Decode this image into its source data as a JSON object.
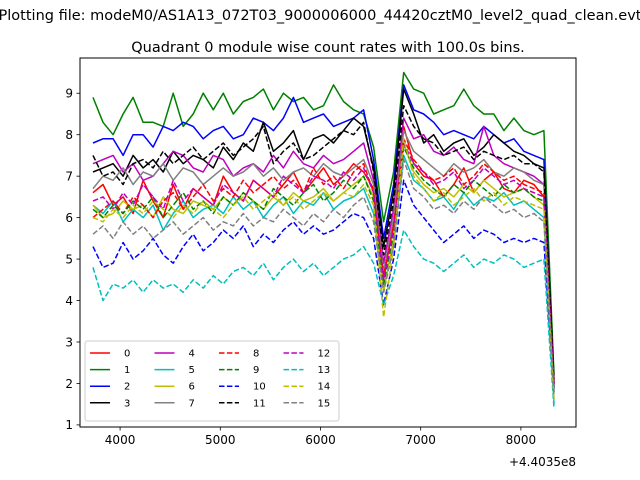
{
  "chart_data": {
    "type": "line",
    "suptitle": "Plotting file: modeM0/AS1A13_072T03_9000006000_44420cztM0_level2_quad_clean.evt",
    "title": "Quadrant 0 module wise count rates with 100.0s bins.",
    "xlabel": "",
    "ylabel": "",
    "offset_label": "+4.4035e8",
    "xlim": [
      3600,
      8550
    ],
    "ylim": [
      0.95,
      9.85
    ],
    "xticks": [
      4000,
      5000,
      6000,
      7000,
      8000
    ],
    "yticks": [
      1,
      2,
      3,
      4,
      5,
      6,
      7,
      8,
      9
    ],
    "grid": false,
    "legend_position": "lower left",
    "legend_columns": 4,
    "x": [
      3730,
      3830,
      3930,
      4030,
      4130,
      4230,
      4330,
      4430,
      4530,
      4630,
      4730,
      4830,
      4930,
      5030,
      5130,
      5230,
      5330,
      5430,
      5530,
      5630,
      5730,
      5830,
      5930,
      6030,
      6130,
      6230,
      6330,
      6430,
      6530,
      6630,
      6730,
      6830,
      6930,
      7030,
      7130,
      7230,
      7330,
      7430,
      7530,
      7630,
      7730,
      7830,
      7930,
      8030,
      8130,
      8230,
      8330
    ],
    "series": [
      {
        "name": "0",
        "color": "#ff0000",
        "dash": "solid",
        "values": [
          6.6,
          6.8,
          6.3,
          6.5,
          6.1,
          6.9,
          6.4,
          6.0,
          6.8,
          6.2,
          6.7,
          6.5,
          6.3,
          7.0,
          6.6,
          6.4,
          6.9,
          6.7,
          6.5,
          6.8,
          7.1,
          6.6,
          6.9,
          7.2,
          6.8,
          7.0,
          7.3,
          7.1,
          6.7,
          4.5,
          5.9,
          8.2,
          7.3,
          7.0,
          6.9,
          6.5,
          6.8,
          7.2,
          6.6,
          6.9,
          7.1,
          6.7,
          6.6,
          6.9,
          6.8,
          6.5,
          2.0
        ]
      },
      {
        "name": "1",
        "color": "#008000",
        "dash": "solid",
        "values": [
          8.9,
          8.3,
          8.0,
          8.5,
          8.9,
          8.3,
          8.3,
          8.2,
          9.0,
          8.2,
          8.5,
          9.0,
          8.6,
          9.0,
          8.5,
          8.8,
          8.9,
          9.1,
          8.6,
          9.0,
          8.8,
          8.9,
          8.6,
          8.7,
          9.2,
          8.8,
          8.6,
          8.5,
          7.7,
          5.9,
          7.1,
          9.5,
          9.1,
          9.0,
          8.5,
          8.6,
          8.7,
          9.1,
          8.7,
          8.5,
          8.5,
          8.1,
          8.4,
          8.1,
          8.0,
          8.1,
          2.2
        ]
      },
      {
        "name": "2",
        "color": "#0000ff",
        "dash": "solid",
        "values": [
          7.8,
          7.9,
          7.9,
          7.5,
          8.0,
          8.0,
          7.7,
          8.2,
          8.1,
          8.3,
          8.2,
          7.9,
          8.1,
          8.2,
          7.9,
          8.0,
          8.4,
          8.3,
          8.1,
          8.4,
          8.9,
          8.3,
          8.4,
          8.5,
          8.2,
          8.3,
          8.4,
          8.6,
          7.4,
          5.5,
          6.8,
          9.2,
          8.6,
          8.5,
          8.3,
          8.0,
          8.1,
          8.0,
          7.9,
          8.2,
          8.0,
          7.8,
          7.9,
          7.6,
          7.5,
          7.4,
          1.9
        ]
      },
      {
        "name": "3",
        "color": "#000000",
        "dash": "solid",
        "values": [
          7.1,
          7.2,
          7.3,
          7.0,
          7.5,
          7.2,
          7.4,
          7.1,
          7.6,
          7.3,
          7.5,
          7.4,
          7.2,
          7.7,
          7.4,
          7.8,
          7.6,
          8.3,
          7.6,
          7.8,
          8.1,
          7.4,
          7.9,
          8.0,
          7.8,
          8.1,
          8.4,
          8.2,
          7.2,
          5.3,
          6.6,
          9.1,
          8.5,
          7.8,
          8.0,
          7.6,
          7.8,
          7.9,
          7.5,
          7.7,
          8.0,
          7.8,
          7.6,
          7.5,
          7.3,
          7.2,
          2.1
        ]
      },
      {
        "name": "4",
        "color": "#bf00bf",
        "dash": "solid",
        "values": [
          7.3,
          7.4,
          7.5,
          7.1,
          7.3,
          6.9,
          7.0,
          7.3,
          7.6,
          7.5,
          7.2,
          7.1,
          7.5,
          7.4,
          7.0,
          7.2,
          7.3,
          7.1,
          7.5,
          7.2,
          7.6,
          7.3,
          7.2,
          7.5,
          7.3,
          7.4,
          7.6,
          7.8,
          6.9,
          4.9,
          6.2,
          8.4,
          7.9,
          8.0,
          7.6,
          7.5,
          7.7,
          7.4,
          7.3,
          8.2,
          7.5,
          7.3,
          7.2,
          7.1,
          7.0,
          6.8,
          1.8
        ]
      },
      {
        "name": "5",
        "color": "#00bfbf",
        "dash": "solid",
        "values": [
          6.3,
          6.1,
          6.4,
          5.9,
          6.2,
          6.0,
          6.3,
          5.7,
          6.1,
          6.4,
          6.0,
          6.2,
          6.3,
          6.1,
          6.5,
          6.2,
          6.4,
          6.0,
          6.3,
          6.5,
          6.1,
          6.4,
          6.3,
          6.6,
          6.2,
          6.4,
          6.5,
          6.7,
          6.1,
          4.3,
          5.4,
          7.5,
          6.9,
          6.7,
          6.4,
          6.5,
          6.2,
          6.6,
          6.3,
          6.5,
          6.4,
          6.6,
          6.3,
          6.4,
          6.2,
          6.0,
          1.5
        ]
      },
      {
        "name": "6",
        "color": "#bfbf00",
        "dash": "solid",
        "values": [
          6.3,
          6.0,
          6.1,
          6.4,
          6.2,
          6.3,
          6.0,
          6.5,
          6.2,
          6.1,
          6.4,
          6.3,
          6.2,
          6.5,
          6.3,
          6.6,
          6.4,
          6.2,
          6.5,
          6.3,
          6.6,
          6.4,
          6.5,
          6.7,
          6.4,
          6.6,
          6.8,
          7.0,
          6.5,
          4.2,
          5.5,
          7.8,
          7.1,
          6.8,
          6.6,
          6.7,
          6.5,
          6.8,
          6.6,
          6.9,
          6.7,
          6.5,
          6.6,
          6.7,
          6.5,
          6.3,
          1.6
        ]
      },
      {
        "name": "7",
        "color": "#808080",
        "dash": "solid",
        "values": [
          6.7,
          7.0,
          6.9,
          7.2,
          6.8,
          7.1,
          7.0,
          7.3,
          6.9,
          7.2,
          7.1,
          6.8,
          7.0,
          7.2,
          7.0,
          7.1,
          7.3,
          7.0,
          7.2,
          6.9,
          7.1,
          7.2,
          7.0,
          7.3,
          7.1,
          7.0,
          7.2,
          7.4,
          6.8,
          4.7,
          6.0,
          8.1,
          7.6,
          7.4,
          7.2,
          7.0,
          7.3,
          7.1,
          7.2,
          7.4,
          7.1,
          7.0,
          7.2,
          7.1,
          6.9,
          6.8,
          1.9
        ]
      },
      {
        "name": "8",
        "color": "#ff0000",
        "dash": "dashed",
        "values": [
          6.0,
          6.2,
          6.4,
          6.1,
          6.5,
          6.3,
          6.0,
          6.4,
          6.6,
          6.2,
          6.5,
          6.8,
          6.4,
          6.7,
          6.5,
          6.9,
          6.6,
          6.8,
          7.0,
          6.7,
          6.9,
          6.6,
          7.2,
          6.8,
          7.0,
          6.7,
          7.1,
          7.3,
          6.6,
          4.6,
          5.8,
          7.9,
          7.4,
          7.1,
          6.9,
          7.0,
          7.2,
          6.8,
          7.0,
          7.3,
          7.1,
          6.9,
          7.0,
          6.8,
          6.7,
          6.6,
          2.0
        ]
      },
      {
        "name": "9",
        "color": "#008000",
        "dash": "dashed",
        "values": [
          6.2,
          6.0,
          6.3,
          6.1,
          6.4,
          6.2,
          6.5,
          6.0,
          6.3,
          6.6,
          6.2,
          6.4,
          6.1,
          6.5,
          6.3,
          6.6,
          6.4,
          6.2,
          6.7,
          6.5,
          6.3,
          6.6,
          6.8,
          6.4,
          6.6,
          6.9,
          6.7,
          7.0,
          6.4,
          4.4,
          5.6,
          7.7,
          7.2,
          6.9,
          6.7,
          6.5,
          6.8,
          6.6,
          6.9,
          6.7,
          6.5,
          6.8,
          6.6,
          6.7,
          6.5,
          6.4,
          1.8
        ]
      },
      {
        "name": "10",
        "color": "#0000ff",
        "dash": "dashed",
        "values": [
          5.3,
          4.8,
          4.9,
          5.4,
          5.0,
          5.2,
          5.5,
          5.1,
          4.9,
          5.3,
          5.6,
          5.2,
          5.4,
          5.7,
          5.5,
          5.8,
          5.3,
          5.6,
          5.4,
          5.7,
          5.9,
          5.6,
          5.8,
          5.6,
          5.7,
          5.9,
          6.1,
          6.0,
          5.5,
          3.9,
          5.0,
          6.9,
          6.3,
          6.0,
          5.7,
          5.4,
          5.6,
          5.8,
          5.5,
          5.7,
          5.6,
          5.4,
          5.5,
          5.4,
          5.5,
          5.4,
          1.7
        ]
      },
      {
        "name": "11",
        "color": "#000000",
        "dash": "dashed",
        "values": [
          7.5,
          7.0,
          7.1,
          6.8,
          7.3,
          7.4,
          7.2,
          7.6,
          7.3,
          7.5,
          7.7,
          7.4,
          7.6,
          7.8,
          7.5,
          7.7,
          7.9,
          8.2,
          7.3,
          7.6,
          7.8,
          7.4,
          7.5,
          7.7,
          7.9,
          8.1,
          8.0,
          8.3,
          7.1,
          5.1,
          6.4,
          8.7,
          8.2,
          7.9,
          7.8,
          7.5,
          7.6,
          7.7,
          7.4,
          7.6,
          7.5,
          7.4,
          7.5,
          7.3,
          7.3,
          7.1,
          2.0
        ]
      },
      {
        "name": "12",
        "color": "#bf00bf",
        "dash": "dashed",
        "values": [
          6.4,
          6.5,
          6.2,
          6.6,
          6.3,
          6.8,
          6.5,
          6.2,
          6.9,
          6.4,
          6.7,
          6.5,
          6.3,
          6.8,
          6.6,
          6.4,
          6.9,
          6.7,
          6.5,
          7.0,
          6.8,
          6.6,
          7.0,
          6.9,
          6.7,
          7.1,
          6.9,
          7.2,
          6.6,
          4.5,
          5.7,
          7.8,
          7.3,
          7.1,
          6.8,
          6.9,
          7.1,
          6.7,
          6.9,
          7.2,
          7.0,
          6.8,
          6.9,
          6.7,
          6.6,
          6.5,
          1.9
        ]
      },
      {
        "name": "13",
        "color": "#00bfbf",
        "dash": "dashed",
        "values": [
          4.8,
          4.0,
          4.4,
          4.3,
          4.5,
          4.2,
          4.5,
          4.3,
          4.4,
          4.2,
          4.5,
          4.3,
          4.6,
          4.4,
          4.7,
          4.8,
          4.6,
          4.9,
          4.5,
          4.8,
          5.0,
          4.7,
          4.9,
          4.6,
          4.8,
          5.0,
          5.1,
          5.3,
          4.9,
          3.9,
          4.6,
          5.7,
          5.3,
          5.0,
          4.9,
          4.7,
          4.9,
          5.1,
          4.8,
          5.0,
          4.9,
          5.1,
          5.0,
          4.8,
          4.9,
          5.0,
          1.4
        ]
      },
      {
        "name": "14",
        "color": "#bfbf00",
        "dash": "dashed",
        "values": [
          6.0,
          5.9,
          6.2,
          6.0,
          6.3,
          6.1,
          6.4,
          6.2,
          6.0,
          6.3,
          6.1,
          6.4,
          6.2,
          6.0,
          6.3,
          6.5,
          6.2,
          6.4,
          6.6,
          6.3,
          6.5,
          6.2,
          6.4,
          6.6,
          6.4,
          6.6,
          6.5,
          6.8,
          6.3,
          3.6,
          5.3,
          7.9,
          7.0,
          6.7,
          6.4,
          6.6,
          6.3,
          6.5,
          6.7,
          6.4,
          6.6,
          6.3,
          6.5,
          6.4,
          6.3,
          6.2,
          1.6
        ]
      },
      {
        "name": "15",
        "color": "#808080",
        "dash": "dashed",
        "values": [
          5.6,
          5.8,
          5.5,
          5.9,
          5.6,
          5.8,
          5.5,
          5.7,
          5.9,
          5.6,
          5.8,
          6.0,
          5.7,
          5.9,
          5.8,
          6.1,
          5.8,
          6.0,
          5.9,
          6.2,
          6.0,
          5.8,
          6.1,
          5.9,
          6.2,
          6.0,
          6.3,
          6.5,
          5.9,
          4.2,
          5.3,
          7.4,
          6.7,
          6.5,
          6.2,
          6.3,
          6.1,
          6.4,
          6.2,
          6.5,
          6.3,
          6.1,
          6.2,
          6.0,
          6.1,
          5.9,
          1.7
        ]
      }
    ]
  }
}
